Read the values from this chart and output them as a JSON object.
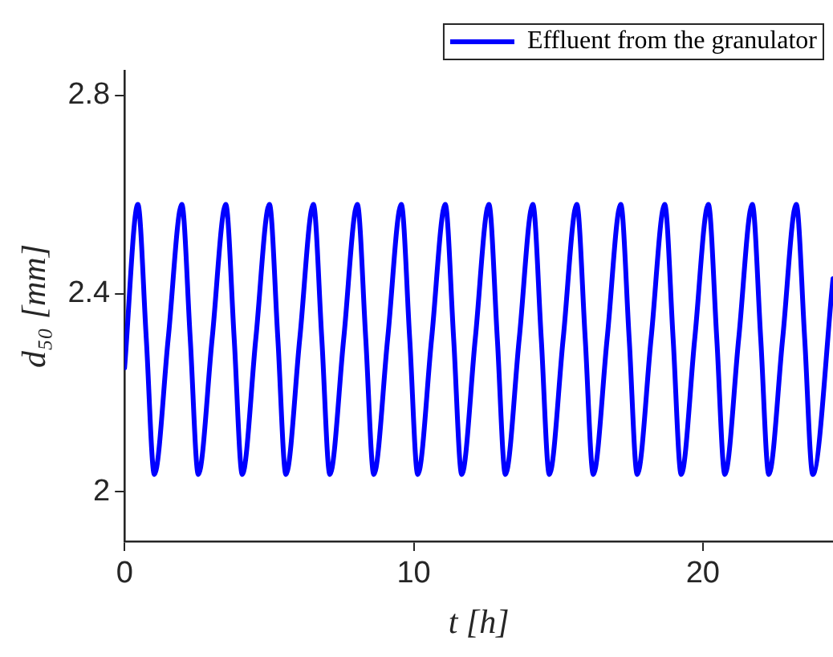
{
  "chart_data": {
    "type": "line",
    "xlabel": "t [h]",
    "ylabel": "d₅₀ [mm]",
    "xlim": [
      0,
      24.5
    ],
    "xticks": [
      0,
      10,
      20
    ],
    "ylim": [
      1.9,
      2.85
    ],
    "yticks": [
      2,
      2.4,
      2.8
    ],
    "grid": false,
    "legend": "top right",
    "marker": "none",
    "line_style": "solid",
    "series": [
      {
        "name": "Effluent from the granulator",
        "color": "#0000ff",
        "x": [
          0,
          0.46,
          0.75,
          1.03,
          1.51,
          1.98,
          2.27,
          2.55,
          3.03,
          3.5,
          3.79,
          4.07,
          4.54,
          5.01,
          5.3,
          5.58,
          6.06,
          6.53,
          6.82,
          7.1,
          7.58,
          8.05,
          8.34,
          8.62,
          9.1,
          9.57,
          9.86,
          10.14,
          10.62,
          11.09,
          11.38,
          11.66,
          12.13,
          12.6,
          12.89,
          13.17,
          13.65,
          14.12,
          14.41,
          14.69,
          15.17,
          15.64,
          15.93,
          16.21,
          16.69,
          17.16,
          17.45,
          17.73,
          18.21,
          18.68,
          18.97,
          19.25,
          19.72,
          20.19,
          20.48,
          20.76,
          21.24,
          21.71,
          22.0,
          22.28,
          22.76,
          23.23,
          23.52,
          23.8,
          24.5
        ],
        "values": [
          2.25,
          2.58,
          2.31,
          2.035,
          2.31,
          2.58,
          2.31,
          2.035,
          2.31,
          2.58,
          2.31,
          2.035,
          2.31,
          2.58,
          2.31,
          2.035,
          2.31,
          2.58,
          2.31,
          2.035,
          2.31,
          2.58,
          2.31,
          2.035,
          2.31,
          2.58,
          2.31,
          2.035,
          2.31,
          2.58,
          2.31,
          2.035,
          2.31,
          2.58,
          2.31,
          2.035,
          2.31,
          2.58,
          2.31,
          2.035,
          2.31,
          2.58,
          2.31,
          2.035,
          2.31,
          2.58,
          2.31,
          2.035,
          2.31,
          2.58,
          2.31,
          2.035,
          2.31,
          2.58,
          2.31,
          2.035,
          2.31,
          2.58,
          2.31,
          2.035,
          2.31,
          2.58,
          2.31,
          2.035,
          2.43
        ]
      }
    ]
  }
}
